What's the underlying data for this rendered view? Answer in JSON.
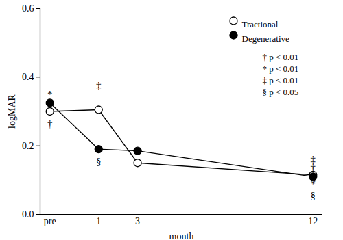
{
  "chart_data": {
    "type": "line",
    "x_label": "month",
    "y_label": "logMAR",
    "x": [
      -1.5,
      1,
      3,
      12
    ],
    "xlim": [
      -2,
      12.5
    ],
    "xticks": [
      {
        "value": -1.5,
        "label": "pre"
      },
      1,
      3,
      12
    ],
    "ylim": [
      0,
      0.6
    ],
    "yticks": [
      {
        "value": 0,
        "label": "0.0"
      },
      {
        "value": 0.2,
        "label": "0.2"
      },
      {
        "value": 0.4,
        "label": "0.4"
      },
      {
        "value": 0.6,
        "label": "0.6"
      }
    ],
    "grid": false,
    "legend": "top-right",
    "series": [
      {
        "name": "Tractional",
        "color": "#000000",
        "marker": "open circle",
        "line_style": "solid",
        "values": [
          0.3,
          0.305,
          0.15,
          0.115
        ]
      },
      {
        "name": "Degenerative",
        "color": "#000000",
        "marker": "filled circle",
        "line_style": "solid",
        "values": [
          0.325,
          0.19,
          0.185,
          0.11
        ]
      }
    ],
    "annotations": [
      {
        "x": -1.5,
        "y": 0.35,
        "text": "*"
      },
      {
        "x": -1.5,
        "y": 0.263,
        "text": "†"
      },
      {
        "x": 1,
        "y": 0.376,
        "text": "‡"
      },
      {
        "x": 1,
        "y": 0.154,
        "text": "§"
      },
      {
        "x": 12,
        "y": 0.16,
        "text": "‡"
      },
      {
        "x": 12,
        "y": 0.136,
        "text": "†"
      },
      {
        "x": 12,
        "y": 0.088,
        "text": "*"
      },
      {
        "x": 12,
        "y": 0.055,
        "text": "§"
      }
    ],
    "notes": [
      "† p < 0.01",
      "* p < 0.01",
      "‡ p < 0.01",
      "§ p < 0.05"
    ]
  }
}
